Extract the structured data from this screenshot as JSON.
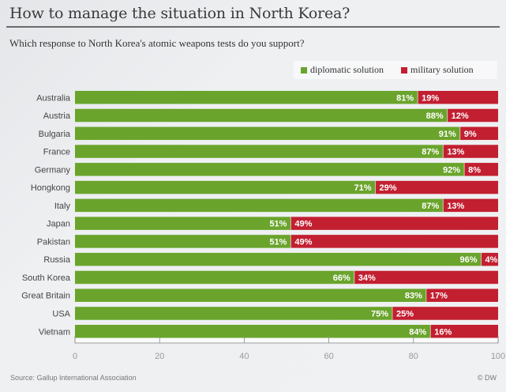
{
  "header": {
    "title": "How to manage the situation in North Korea?",
    "subtitle": "Which response to North Korea's atomic weapons tests do you support?"
  },
  "footer": {
    "source": "Source: Gallup International Association",
    "credit": "© DW"
  },
  "colors": {
    "diplomatic": "#6aa42c",
    "military": "#c21f30"
  },
  "chart_data": {
    "type": "bar",
    "orientation": "horizontal",
    "stacked": true,
    "title": "How to manage the situation in North Korea?",
    "subtitle": "Which response to North Korea's atomic weapons tests do you support?",
    "xlabel": "",
    "ylabel": "",
    "xlim": [
      0,
      100
    ],
    "xticks": [
      0,
      20,
      40,
      60,
      80,
      100
    ],
    "xtick_labels": [
      "0",
      "20",
      "40",
      "60",
      "80",
      "100"
    ],
    "grid": false,
    "legend_position": "top-right",
    "categories": [
      "Australia",
      "Austria",
      "Bulgaria",
      "France",
      "Germany",
      "Hongkong",
      "Italy",
      "Japan",
      "Pakistan",
      "Russia",
      "South Korea",
      "Great Britain",
      "USA",
      "Vietnam"
    ],
    "series": [
      {
        "name": "diplomatic solution",
        "color": "#6aa42c",
        "values": [
          81,
          88,
          91,
          87,
          92,
          71,
          87,
          51,
          51,
          96,
          66,
          83,
          75,
          84
        ],
        "labels": [
          "81%",
          "88%",
          "91%",
          "87%",
          "92%",
          "71%",
          "87%",
          "51%",
          "51%",
          "96%",
          "66%",
          "83%",
          "75%",
          "84%"
        ]
      },
      {
        "name": "military solution",
        "color": "#c21f30",
        "values": [
          19,
          12,
          9,
          13,
          8,
          29,
          13,
          49,
          49,
          4,
          34,
          17,
          25,
          16
        ],
        "labels": [
          "19%",
          "12%",
          "9%",
          "13%",
          "8%",
          "29%",
          "13%",
          "49%",
          "49%",
          "4%",
          "34%",
          "17%",
          "25%",
          "16%"
        ]
      }
    ],
    "source": "Source: Gallup International Association"
  }
}
